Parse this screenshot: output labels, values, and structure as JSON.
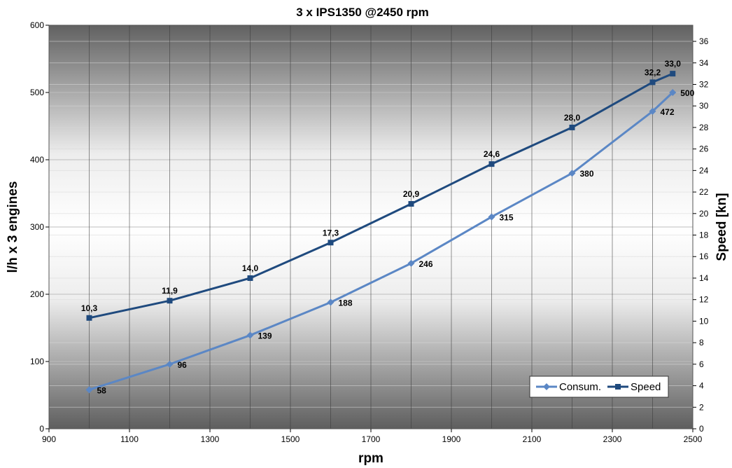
{
  "chart_data": {
    "type": "line",
    "title": "3 x IPS1350 @2450 rpm",
    "xlabel": "rpm",
    "ylabel_left": "l/h x 3 engines",
    "ylabel_right": "Speed [kn]",
    "xlim": [
      900,
      2500
    ],
    "xticks": [
      "900",
      "1100",
      "1300",
      "1500",
      "1700",
      "1900",
      "2100",
      "2300",
      "2500"
    ],
    "ylim_left": [
      0,
      600
    ],
    "yticks_left": [
      "0",
      "100",
      "200",
      "300",
      "400",
      "500",
      "600"
    ],
    "ylim_right": [
      0,
      37.5
    ],
    "yticks_right": [
      "0",
      "2",
      "4",
      "6",
      "8",
      "10",
      "12",
      "14",
      "16",
      "18",
      "20",
      "22",
      "24",
      "26",
      "28",
      "30",
      "32",
      "34",
      "36"
    ],
    "grid": true,
    "legend_position": "bottom-right",
    "series": [
      {
        "name": "Consum.",
        "axis": "left",
        "marker": "diamond",
        "color": "#5b87c5",
        "x": [
          1000,
          1200,
          1400,
          1600,
          1800,
          2000,
          2200,
          2400,
          2450
        ],
        "values": [
          58,
          96,
          139,
          188,
          246,
          315,
          380,
          472,
          500
        ],
        "labels": [
          "58",
          "96",
          "139",
          "188",
          "246",
          "315",
          "380",
          "472",
          "500"
        ]
      },
      {
        "name": "Speed",
        "axis": "right",
        "marker": "square",
        "color": "#1f4a7e",
        "x": [
          1000,
          1200,
          1400,
          1600,
          1800,
          2000,
          2200,
          2400,
          2450
        ],
        "values": [
          10.3,
          11.9,
          14.0,
          17.3,
          20.9,
          24.6,
          28.0,
          32.2,
          33.0
        ],
        "labels": [
          "10,3",
          "11,9",
          "14,0",
          "17,3",
          "20,9",
          "24,6",
          "28,0",
          "32,2",
          "33,0"
        ]
      }
    ]
  }
}
